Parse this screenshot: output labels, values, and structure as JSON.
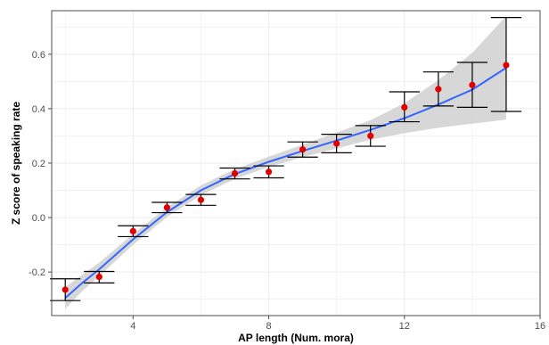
{
  "chart_data": {
    "type": "scatter",
    "xlabel": "AP length (Num. mora)",
    "ylabel": "Z score of speaking rate",
    "xlim": [
      1.6,
      16
    ],
    "ylim": [
      -0.36,
      0.76
    ],
    "x_ticks": [
      4,
      8,
      12,
      16
    ],
    "y_ticks": [
      -0.2,
      0.0,
      0.2,
      0.4,
      0.6
    ],
    "x_tick_labels": [
      "4",
      "8",
      "12",
      "16"
    ],
    "y_tick_labels": [
      "-0.2",
      "0.0",
      "0.2",
      "0.4",
      "0.6"
    ],
    "grid": true,
    "points": [
      {
        "x": 2,
        "y": -0.265,
        "lo": -0.305,
        "hi": -0.225
      },
      {
        "x": 3,
        "y": -0.218,
        "lo": -0.24,
        "hi": -0.198
      },
      {
        "x": 4,
        "y": -0.05,
        "lo": -0.07,
        "hi": -0.03
      },
      {
        "x": 5,
        "y": 0.037,
        "lo": 0.018,
        "hi": 0.056
      },
      {
        "x": 6,
        "y": 0.065,
        "lo": 0.045,
        "hi": 0.085
      },
      {
        "x": 7,
        "y": 0.162,
        "lo": 0.142,
        "hi": 0.182
      },
      {
        "x": 8,
        "y": 0.168,
        "lo": 0.146,
        "hi": 0.19
      },
      {
        "x": 9,
        "y": 0.25,
        "lo": 0.222,
        "hi": 0.278
      },
      {
        "x": 10,
        "y": 0.272,
        "lo": 0.238,
        "hi": 0.306
      },
      {
        "x": 11,
        "y": 0.3,
        "lo": 0.262,
        "hi": 0.338
      },
      {
        "x": 12,
        "y": 0.405,
        "lo": 0.352,
        "hi": 0.462
      },
      {
        "x": 13,
        "y": 0.472,
        "lo": 0.41,
        "hi": 0.535
      },
      {
        "x": 14,
        "y": 0.487,
        "lo": 0.405,
        "hi": 0.57
      },
      {
        "x": 15,
        "y": 0.56,
        "lo": 0.39,
        "hi": 0.735
      }
    ],
    "smooth": {
      "x": [
        2,
        2.5,
        3,
        4,
        5,
        6,
        7,
        8,
        9,
        10,
        11,
        12,
        13,
        14,
        15
      ],
      "y": [
        -0.295,
        -0.24,
        -0.19,
        -0.08,
        0.02,
        0.1,
        0.16,
        0.205,
        0.245,
        0.283,
        0.322,
        0.365,
        0.415,
        0.47,
        0.55
      ],
      "upper": [
        -0.255,
        -0.21,
        -0.165,
        -0.06,
        0.038,
        0.118,
        0.178,
        0.224,
        0.268,
        0.312,
        0.358,
        0.42,
        0.505,
        0.605,
        0.74
      ],
      "lower": [
        -0.335,
        -0.27,
        -0.215,
        -0.1,
        0.002,
        0.082,
        0.142,
        0.186,
        0.222,
        0.254,
        0.286,
        0.31,
        0.33,
        0.345,
        0.36
      ]
    },
    "colors": {
      "point": "#e00000",
      "smooth_line": "#3366ff",
      "ribbon": "#d0d0d0",
      "error_bar": "#000000",
      "grid": "#ebebeb",
      "panel_border": "#4d4d4d"
    }
  }
}
